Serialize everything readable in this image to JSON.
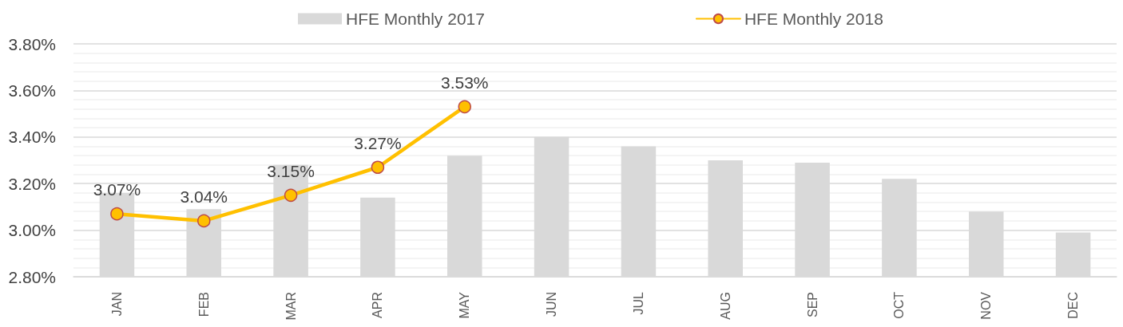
{
  "chart_data": {
    "type": "bar",
    "categories": [
      "JAN",
      "FEB",
      "MAR",
      "APR",
      "MAY",
      "JUN",
      "JUL",
      "AUG",
      "SEP",
      "OCT",
      "NOV",
      "DEC"
    ],
    "series": [
      {
        "name": "HFE Monthly 2017",
        "color": "#d9d9d9",
        "values": [
          3.16,
          3.09,
          3.28,
          3.14,
          3.32,
          3.4,
          3.36,
          3.3,
          3.29,
          3.22,
          3.08,
          2.99
        ]
      },
      {
        "name": "HFE Monthly 2018",
        "type": "line",
        "color": "#ffc000",
        "values": [
          3.07,
          3.04,
          3.15,
          3.27,
          3.53,
          null,
          null,
          null,
          null,
          null,
          null,
          null
        ],
        "value_labels": [
          "3.07%",
          "3.04%",
          "3.15%",
          "3.27%",
          "3.53%",
          null,
          null,
          null,
          null,
          null,
          null,
          null
        ]
      }
    ],
    "ylim": [
      2.8,
      3.8
    ],
    "yticks": [
      {
        "value": 2.8,
        "label": "2.80%"
      },
      {
        "value": 3.0,
        "label": "3.00%"
      },
      {
        "value": 3.2,
        "label": "3.20%"
      },
      {
        "value": 3.4,
        "label": "3.40%"
      },
      {
        "value": 3.6,
        "label": "3.60%"
      },
      {
        "value": 3.8,
        "label": "3.80%"
      }
    ],
    "grid": "y",
    "legend": "top",
    "marker": "circle"
  }
}
